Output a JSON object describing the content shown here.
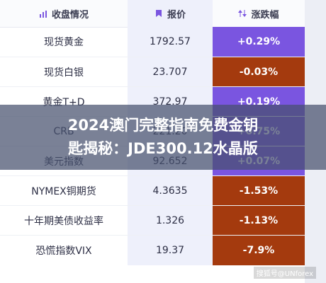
{
  "header": {
    "col1": "收盘情况",
    "col2": "报价",
    "col3": "涨跌幅"
  },
  "rows": [
    {
      "name": "现货黄金",
      "price": "1792.57",
      "change": "+0.29%",
      "dir": "up"
    },
    {
      "name": "现货白银",
      "price": "23.707",
      "change": "-0.03%",
      "dir": "down"
    },
    {
      "name": "黄金T+D",
      "price": "372.97",
      "change": "+0.19%",
      "dir": "up"
    },
    {
      "name": "CRB",
      "price": "221.20",
      "change": "+0.75%",
      "dir": "up"
    },
    {
      "name": "美元指数",
      "price": "92.652",
      "change": "+0.07%",
      "dir": "up"
    },
    {
      "name": "NYMEX铜期货",
      "price": "4.3635",
      "change": "-1.53%",
      "dir": "down"
    },
    {
      "name": "十年期美债收益率",
      "price": "1.326",
      "change": "-1.13%",
      "dir": "down"
    },
    {
      "name": "恐慌指数VIX",
      "price": "19.37",
      "change": "-7.9%",
      "dir": "down"
    }
  ],
  "banner": {
    "line1": "2024澳门完整指南免费金钥",
    "line2": "匙揭秘：JDE300.12水晶版"
  },
  "watermark": "搜狐号@UNforex",
  "colors": {
    "up": "#7a55e0",
    "down": "#a43a0e"
  }
}
